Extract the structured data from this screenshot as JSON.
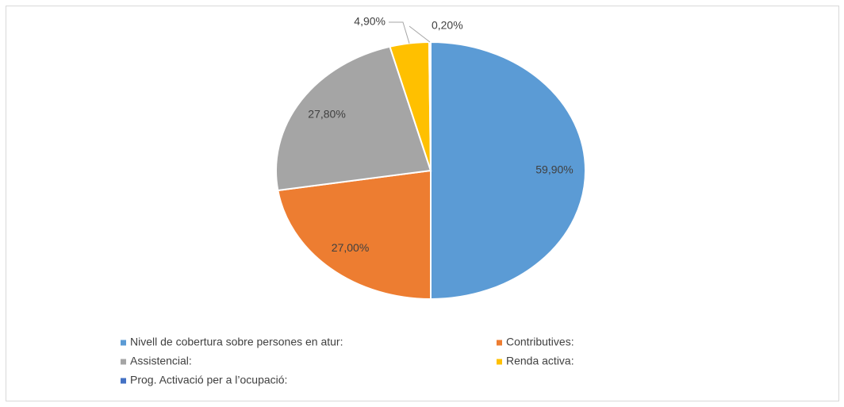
{
  "chart_data": {
    "type": "pie",
    "categories": [
      "Nivell de cobertura sobre persones en atur:",
      "Contributives:",
      "Assistencial:",
      "Renda activa:",
      "Prog. Activació per a l’ocupació:"
    ],
    "values": [
      59.9,
      27.0,
      27.8,
      4.9,
      0.2
    ],
    "value_labels": [
      "59,90%",
      "27,00%",
      "27,80%",
      "4,90%",
      "0,20%"
    ],
    "colors": [
      "#5b9bd5",
      "#ed7d31",
      "#a5a5a5",
      "#ffc000",
      "#4472c4"
    ],
    "legend": "bottom"
  }
}
